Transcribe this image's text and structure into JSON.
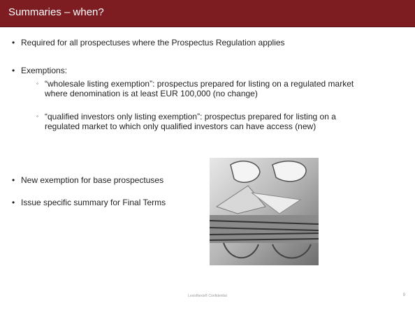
{
  "header": {
    "title": "Summaries – when?"
  },
  "bullets": [
    {
      "text": "Required for all prospectuses where the Prospectus Regulation applies"
    },
    {
      "text": "Exemptions:",
      "sub": [
        "“wholesale listing exemption”: prospectus prepared for listing on a regulated market where denomination is at least EUR 100,000 (no change)",
        "“qualified investors only listing exemption”: prospectus prepared for listing on a regulated market to which only qualified investors can have access (new)"
      ]
    },
    {
      "text": "New exemption for base prospectuses"
    },
    {
      "text": "Issue specific summary for Final Terms"
    }
  ],
  "footer": {
    "confidential": "LexisNexis® Confidential",
    "page": "9"
  }
}
